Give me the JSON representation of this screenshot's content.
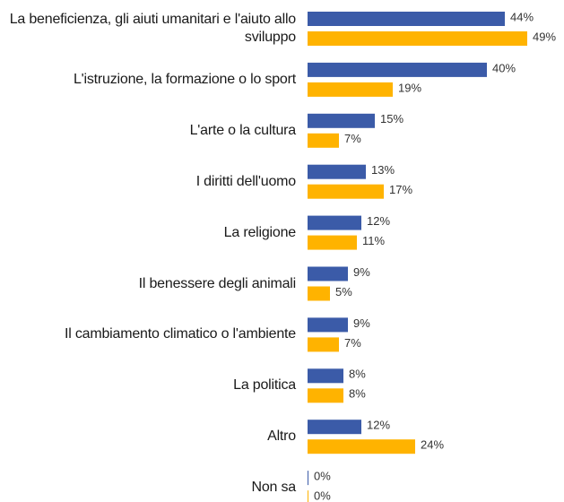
{
  "chart_data": {
    "type": "bar",
    "orientation": "horizontal",
    "categories": [
      "La beneficienza, gli aiuti umanitari e l'aiuto allo sviluppo",
      "L'istruzione, la formazione o lo sport",
      "L'arte o la cultura",
      "I diritti dell'uomo",
      "La religione",
      "Il benessere degli animali",
      "Il cambiamento climatico o l'ambiente",
      "La politica",
      "Altro",
      "Non sa"
    ],
    "series": [
      {
        "color": "#3b5ba8",
        "values": [
          44,
          40,
          15,
          13,
          12,
          9,
          9,
          8,
          12,
          0
        ],
        "value_labels": [
          "44%",
          "40%",
          "15%",
          "13%",
          "12%",
          "9%",
          "9%",
          "8%",
          "12%",
          "0%"
        ]
      },
      {
        "color": "#ffb300",
        "values": [
          49,
          19,
          7,
          17,
          11,
          5,
          7,
          8,
          24,
          0
        ],
        "value_labels": [
          "49%",
          "19%",
          "7%",
          "17%",
          "11%",
          "5%",
          "7%",
          "8%",
          "24%",
          "0%"
        ]
      }
    ]
  }
}
